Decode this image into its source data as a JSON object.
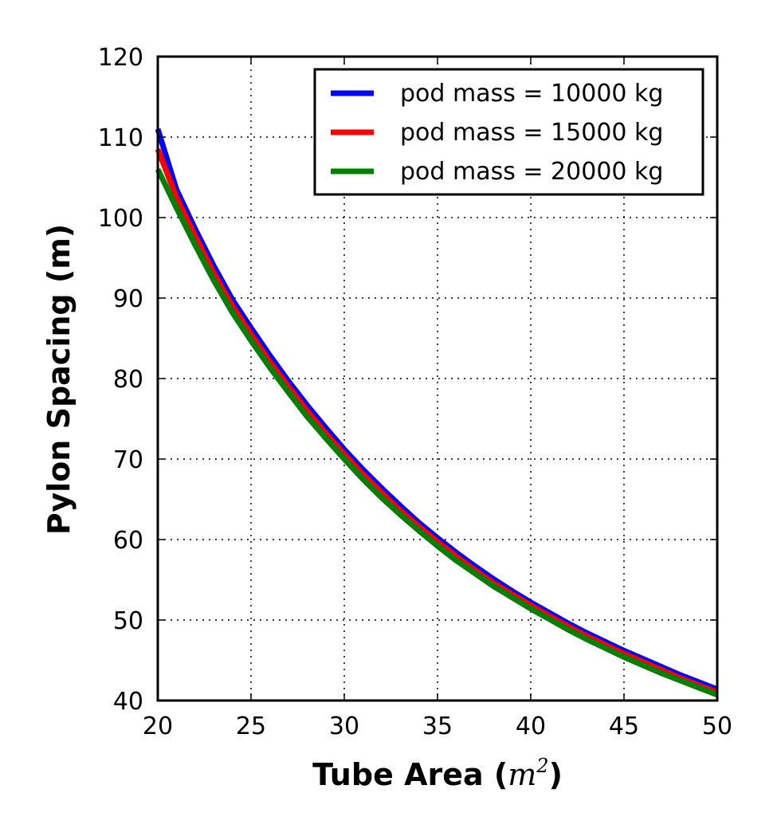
{
  "chart_data": {
    "type": "line",
    "xlabel_prefix": "Tube Area (",
    "xlabel_math": "m",
    "xlabel_sup": "2",
    "xlabel_suffix": ")",
    "ylabel": "Pylon Spacing (m)",
    "xlim": [
      20,
      50
    ],
    "ylim": [
      40,
      120
    ],
    "xticks": [
      20,
      25,
      30,
      35,
      40,
      45,
      50
    ],
    "yticks": [
      40,
      50,
      60,
      70,
      80,
      90,
      100,
      110,
      120
    ],
    "grid": true,
    "legend_position": "top-right",
    "x": [
      20,
      21,
      22,
      23,
      24,
      25,
      26,
      27,
      28,
      29,
      30,
      31,
      32,
      33,
      34,
      35,
      36,
      37,
      38,
      39,
      40,
      41,
      42,
      43,
      44,
      45,
      46,
      47,
      48,
      49,
      50
    ],
    "series": [
      {
        "name": "pod mass = 10000 kg",
        "color": "#0000ff",
        "values": [
          111.0,
          103.5,
          98.6,
          94.0,
          89.8,
          86.3,
          82.9,
          79.7,
          76.7,
          73.9,
          71.2,
          68.7,
          66.4,
          64.2,
          62.1,
          60.2,
          58.4,
          56.7,
          55.1,
          53.6,
          52.2,
          50.9,
          49.6,
          48.4,
          47.3,
          46.2,
          45.2,
          44.2,
          43.2,
          42.3,
          41.4
        ]
      },
      {
        "name": "pod mass = 15000 kg",
        "color": "#ff0000",
        "values": [
          108.5,
          102.5,
          97.7,
          93.1,
          89.0,
          85.5,
          82.1,
          79.0,
          76.0,
          73.2,
          70.6,
          68.1,
          65.8,
          63.6,
          61.6,
          59.7,
          57.9,
          56.2,
          54.6,
          53.2,
          51.8,
          50.5,
          49.2,
          48.0,
          46.9,
          45.8,
          44.8,
          43.8,
          42.8,
          41.9,
          41.0
        ]
      },
      {
        "name": "pod mass = 20000 kg",
        "color": "#008000",
        "values": [
          106.0,
          101.2,
          96.6,
          92.2,
          88.2,
          84.7,
          81.4,
          78.3,
          75.3,
          72.6,
          70.0,
          67.5,
          65.2,
          63.1,
          61.1,
          59.2,
          57.4,
          55.8,
          54.2,
          52.8,
          51.4,
          50.1,
          48.8,
          47.6,
          46.5,
          45.4,
          44.4,
          43.4,
          42.5,
          41.6,
          40.7
        ]
      }
    ]
  }
}
